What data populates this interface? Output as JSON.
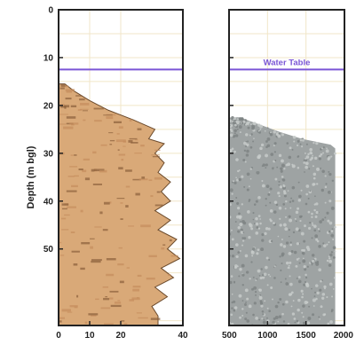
{
  "chart_data": [
    {
      "type": "area",
      "panel": "left",
      "orientation": "vertical-depth",
      "ylabel": "Depth (m bgl)",
      "xlabel": "",
      "ylim": [
        0,
        66
      ],
      "y_inverted": true,
      "xlim": [
        0,
        40
      ],
      "x_ticks": [
        "0",
        "10",
        "20",
        "40"
      ],
      "y_ticks": [
        "0",
        "10",
        "20",
        "30",
        "40",
        "50"
      ],
      "grid": true,
      "fill_color": "#d9a978",
      "outline_color": "#6b4a2c",
      "water_table_depth": 12.5,
      "water_table_color": "#7a55d6",
      "profile": [
        {
          "depth": 15.5,
          "value": 2
        },
        {
          "depth": 17,
          "value": 5
        },
        {
          "depth": 19,
          "value": 10
        },
        {
          "depth": 21,
          "value": 16
        },
        {
          "depth": 23,
          "value": 24
        },
        {
          "depth": 25,
          "value": 31
        },
        {
          "depth": 27,
          "value": 29
        },
        {
          "depth": 28,
          "value": 34
        },
        {
          "depth": 30,
          "value": 31
        },
        {
          "depth": 32,
          "value": 34
        },
        {
          "depth": 34,
          "value": 32
        },
        {
          "depth": 36,
          "value": 36
        },
        {
          "depth": 38,
          "value": 33
        },
        {
          "depth": 40,
          "value": 36
        },
        {
          "depth": 42,
          "value": 31
        },
        {
          "depth": 44,
          "value": 36
        },
        {
          "depth": 46,
          "value": 32
        },
        {
          "depth": 48,
          "value": 38
        },
        {
          "depth": 50,
          "value": 35
        },
        {
          "depth": 52,
          "value": 39
        },
        {
          "depth": 54,
          "value": 33
        },
        {
          "depth": 56,
          "value": 37
        },
        {
          "depth": 58,
          "value": 31
        },
        {
          "depth": 60,
          "value": 35
        },
        {
          "depth": 62,
          "value": 30
        },
        {
          "depth": 64,
          "value": 32
        }
      ]
    },
    {
      "type": "area",
      "panel": "right",
      "orientation": "vertical-depth",
      "ylim": [
        0,
        66
      ],
      "y_inverted": true,
      "xlim": [
        500,
        2000
      ],
      "x_ticks": [
        "500",
        "1000",
        "1500",
        "2000"
      ],
      "grid": true,
      "fill_color": "#9ea3a3",
      "speckle_color": "#c7cbca",
      "water_table_depth": 12.5,
      "water_table_color": "#7a55d6",
      "annotation": "Water Table",
      "profile": [
        {
          "depth": 22.5,
          "value": 640
        },
        {
          "depth": 24,
          "value": 900
        },
        {
          "depth": 25.5,
          "value": 1150
        },
        {
          "depth": 27,
          "value": 1450
        },
        {
          "depth": 28.2,
          "value": 1820
        },
        {
          "depth": 29,
          "value": 1880
        },
        {
          "depth": 64,
          "value": 1880
        }
      ]
    }
  ]
}
